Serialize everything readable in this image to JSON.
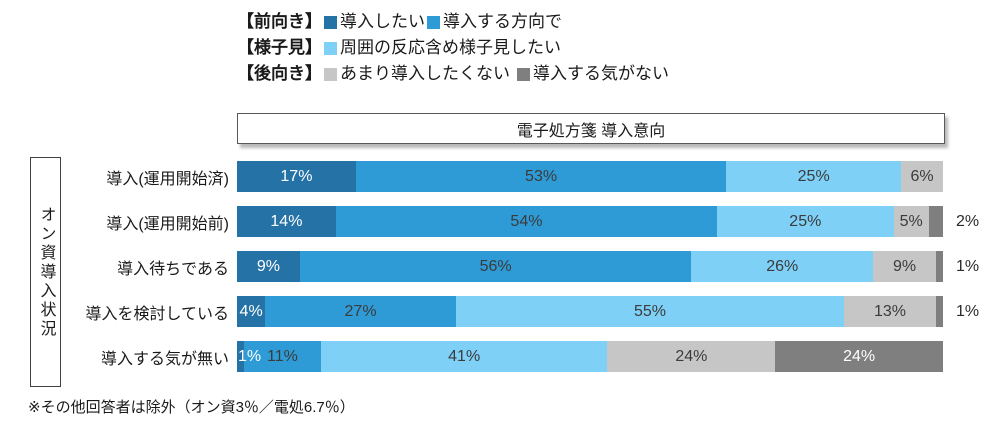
{
  "legend": {
    "rows": [
      {
        "group": "【前向き】",
        "items": [
          {
            "label": "導入したい",
            "color": "#2573A6"
          },
          {
            "label": "導入する方向で",
            "color": "#2E9BD6"
          }
        ]
      },
      {
        "group": "【様子見】",
        "items": [
          {
            "label": "周囲の反応含め様子見したい",
            "color": "#7ED0F7"
          }
        ]
      },
      {
        "group": "【後向き】",
        "items": [
          {
            "label": "あまり導入したくない",
            "color": "#C6C6C6"
          },
          {
            "label": "導入する気がない",
            "color": "#7F7F7F"
          }
        ]
      }
    ]
  },
  "header": {
    "title": "電子処方箋 導入意向"
  },
  "y_axis": {
    "title": "オン資導入状況"
  },
  "footnote": "※その他回答者は除外（オン資3％／電処6.7％）",
  "colors": {
    "dark_blue": "#2573A6",
    "medium_blue": "#2E9BD6",
    "light_blue": "#7ED0F7",
    "light_gray": "#C6C6C6",
    "dark_gray": "#7F7F7F",
    "label_dark": "#3b3b3b",
    "label_light": "#ffffff"
  },
  "chart_data": {
    "type": "bar",
    "orientation": "horizontal",
    "stacked": true,
    "title": "電子処方箋 導入意向",
    "ylabel": "オン資導入状況",
    "xlim": [
      0,
      100
    ],
    "unit": "%",
    "grid": false,
    "legend_position": "top-left",
    "categories": [
      "導入(運用開始済)",
      "導入(運用開始前)",
      "導入待ちである",
      "導入を検討している",
      "導入する気が無い"
    ],
    "series": [
      {
        "name": "導入したい",
        "color": "#2573A6",
        "values": [
          17,
          14,
          9,
          4,
          1
        ]
      },
      {
        "name": "導入する方向で",
        "color": "#2E9BD6",
        "values": [
          53,
          54,
          56,
          27,
          11
        ]
      },
      {
        "name": "周囲の反応含め様子見したい",
        "color": "#7ED0F7",
        "values": [
          25,
          25,
          26,
          55,
          41
        ]
      },
      {
        "name": "あまり導入したくない",
        "color": "#C6C6C6",
        "values": [
          6,
          5,
          9,
          13,
          24
        ]
      },
      {
        "name": "導入する気がない",
        "color": "#7F7F7F",
        "values": [
          0,
          2,
          1,
          1,
          24
        ]
      }
    ]
  }
}
